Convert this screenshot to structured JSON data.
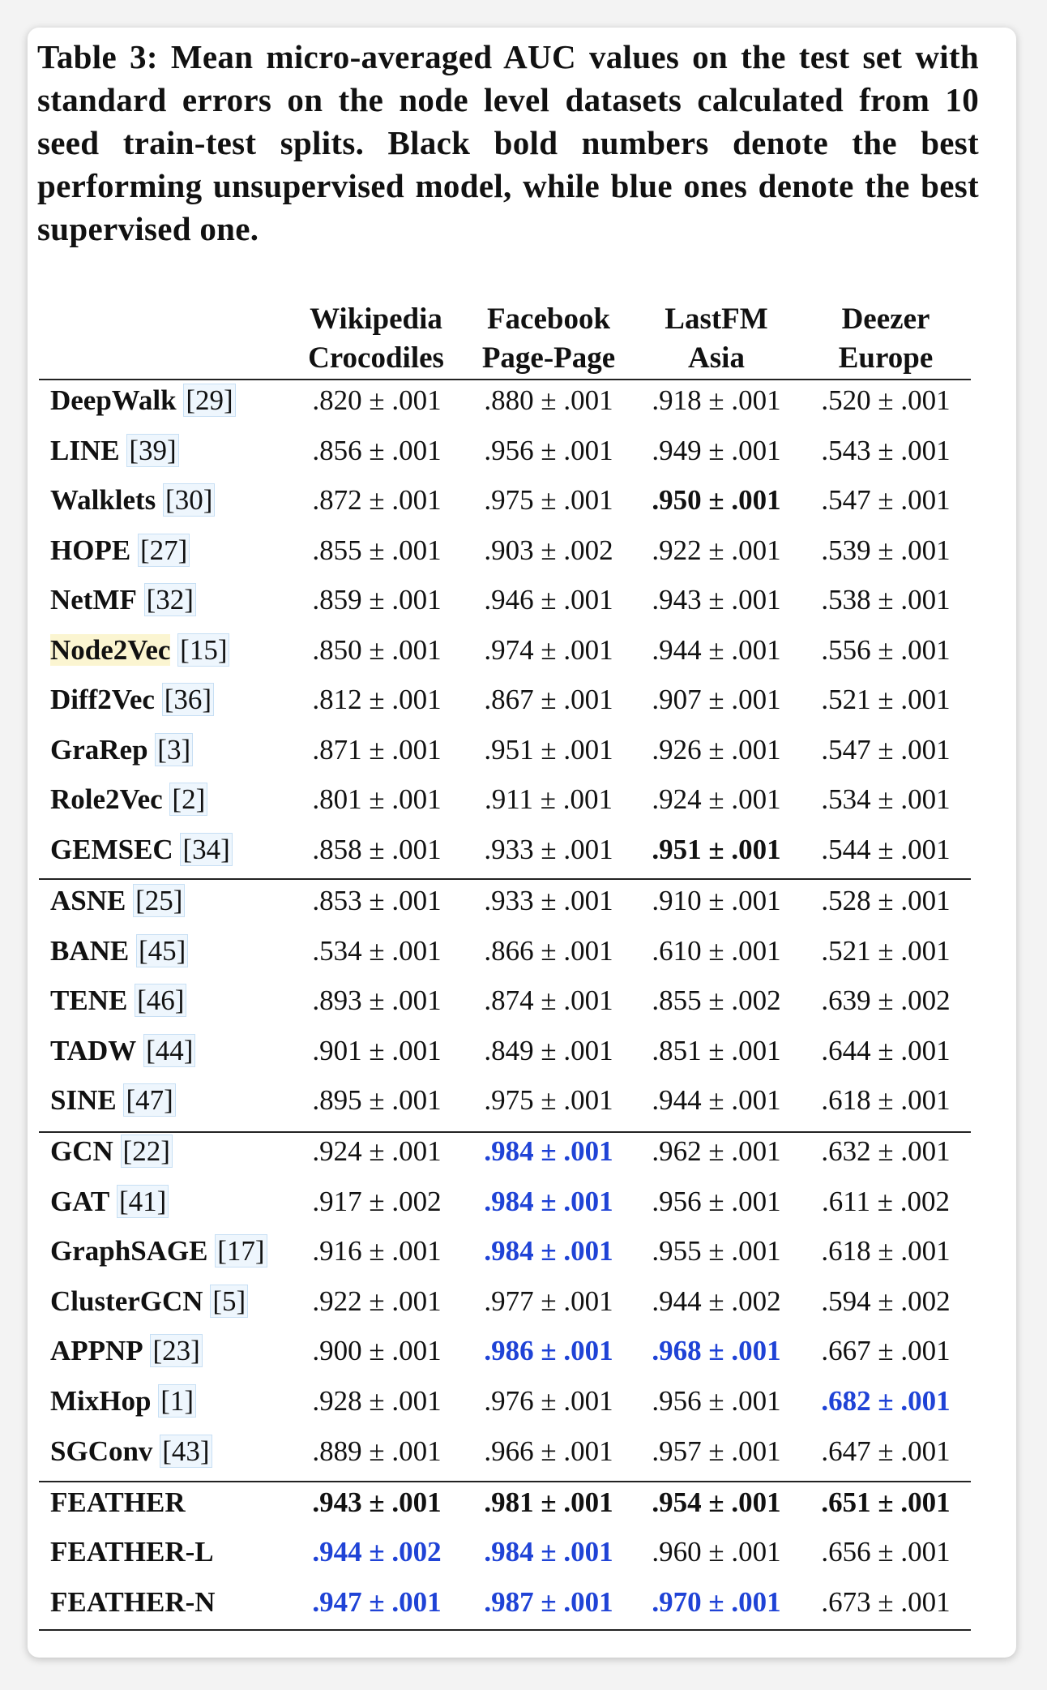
{
  "caption": "Table 3: Mean micro-averaged AUC values on the test set with standard errors on the node level datasets calculated from 10 seed train-test splits. Black bold numbers denote the best performing unsupervised model, while blue ones denote the best supervised one.",
  "colors": {
    "blue_highlight": "#1f43d6",
    "citation_box": "#c7dff4",
    "name_highlight": "#fbf5d1"
  },
  "columns": [
    {
      "line1": "Wikipedia",
      "line2": "Crocodiles"
    },
    {
      "line1": "Facebook",
      "line2": "Page-Page"
    },
    {
      "line1": "LastFM",
      "line2": "Asia"
    },
    {
      "line1": "Deezer",
      "line2": "Europe"
    }
  ],
  "groups": [
    {
      "rows": [
        {
          "name": "DeepWalk",
          "cite": "29",
          "values": [
            ".820 ± .001",
            ".880 ± .001",
            ".918 ± .001",
            ".520 ± .001"
          ],
          "styles": [
            "",
            "",
            "",
            ""
          ]
        },
        {
          "name": "LINE",
          "cite": "39",
          "values": [
            ".856 ± .001",
            ".956 ± .001",
            ".949 ± .001",
            ".543 ± .001"
          ],
          "styles": [
            "",
            "",
            "",
            ""
          ]
        },
        {
          "name": "Walklets",
          "cite": "30",
          "values": [
            ".872 ± .001",
            ".975 ± .001",
            ".950 ± .001",
            ".547 ± .001"
          ],
          "styles": [
            "",
            "",
            "bold",
            ""
          ]
        },
        {
          "name": "HOPE",
          "cite": "27",
          "values": [
            ".855 ± .001",
            ".903 ± .002",
            ".922 ± .001",
            ".539 ± .001"
          ],
          "styles": [
            "",
            "",
            "",
            ""
          ]
        },
        {
          "name": "NetMF",
          "cite": "32",
          "values": [
            ".859 ± .001",
            ".946 ± .001",
            ".943 ± .001",
            ".538 ± .001"
          ],
          "styles": [
            "",
            "",
            "",
            ""
          ]
        },
        {
          "name": "Node2Vec",
          "cite": "15",
          "highlight": true,
          "values": [
            ".850 ± .001",
            ".974 ± .001",
            ".944 ± .001",
            ".556 ± .001"
          ],
          "styles": [
            "",
            "",
            "",
            ""
          ]
        },
        {
          "name": "Diff2Vec",
          "cite": "36",
          "values": [
            ".812 ± .001",
            ".867 ± .001",
            ".907 ± .001",
            ".521 ± .001"
          ],
          "styles": [
            "",
            "",
            "",
            ""
          ]
        },
        {
          "name": "GraRep",
          "cite": "3",
          "values": [
            ".871 ± .001",
            ".951 ± .001",
            ".926 ± .001",
            ".547 ± .001"
          ],
          "styles": [
            "",
            "",
            "",
            ""
          ]
        },
        {
          "name": "Role2Vec",
          "cite": "2",
          "values": [
            ".801 ± .001",
            ".911 ± .001",
            ".924 ± .001",
            ".534 ± .001"
          ],
          "styles": [
            "",
            "",
            "",
            ""
          ]
        },
        {
          "name": "GEMSEC",
          "cite": "34",
          "values": [
            ".858 ± .001",
            ".933 ± .001",
            ".951 ± .001",
            ".544 ± .001"
          ],
          "styles": [
            "",
            "",
            "bold",
            ""
          ]
        }
      ]
    },
    {
      "rows": [
        {
          "name": "ASNE",
          "cite": "25",
          "values": [
            ".853 ± .001",
            ".933 ± .001",
            ".910 ± .001",
            ".528 ± .001"
          ],
          "styles": [
            "",
            "",
            "",
            ""
          ]
        },
        {
          "name": "BANE",
          "cite": "45",
          "values": [
            ".534 ± .001",
            ".866 ± .001",
            ".610 ± .001",
            ".521 ± .001"
          ],
          "styles": [
            "",
            "",
            "",
            ""
          ]
        },
        {
          "name": "TENE",
          "cite": "46",
          "values": [
            ".893 ± .001",
            ".874 ± .001",
            ".855 ± .002",
            ".639 ± .002"
          ],
          "styles": [
            "",
            "",
            "",
            ""
          ]
        },
        {
          "name": "TADW",
          "cite": "44",
          "values": [
            ".901 ± .001",
            ".849 ± .001",
            ".851 ± .001",
            ".644 ± .001"
          ],
          "styles": [
            "",
            "",
            "",
            ""
          ]
        },
        {
          "name": "SINE",
          "cite": "47",
          "values": [
            ".895 ± .001",
            ".975 ± .001",
            ".944 ± .001",
            ".618 ± .001"
          ],
          "styles": [
            "",
            "",
            "",
            ""
          ]
        }
      ]
    },
    {
      "rows": [
        {
          "name": "GCN",
          "cite": "22",
          "values": [
            ".924 ± .001",
            ".984 ± .001",
            ".962 ± .001",
            ".632 ± .001"
          ],
          "styles": [
            "",
            "blue",
            "",
            ""
          ]
        },
        {
          "name": "GAT",
          "cite": "41",
          "values": [
            ".917 ± .002",
            ".984 ± .001",
            ".956 ± .001",
            ".611 ± .002"
          ],
          "styles": [
            "",
            "blue",
            "",
            ""
          ]
        },
        {
          "name": "GraphSAGE",
          "cite": "17",
          "values": [
            ".916 ± .001",
            ".984 ± .001",
            ".955 ± .001",
            ".618 ± .001"
          ],
          "styles": [
            "",
            "blue",
            "",
            ""
          ]
        },
        {
          "name": "ClusterGCN",
          "cite": "5",
          "values": [
            ".922 ± .001",
            ".977 ± .001",
            ".944 ± .002",
            ".594 ± .002"
          ],
          "styles": [
            "",
            "",
            "",
            ""
          ]
        },
        {
          "name": "APPNP",
          "cite": "23",
          "values": [
            ".900 ± .001",
            ".986 ± .001",
            ".968 ± .001",
            ".667 ± .001"
          ],
          "styles": [
            "",
            "blue",
            "blue",
            ""
          ]
        },
        {
          "name": "MixHop",
          "cite": "1",
          "values": [
            ".928 ± .001",
            ".976 ± .001",
            ".956 ± .001",
            ".682 ± .001"
          ],
          "styles": [
            "",
            "",
            "",
            "blue"
          ]
        },
        {
          "name": "SGConv",
          "cite": "43",
          "values": [
            ".889 ± .001",
            ".966 ± .001",
            ".957 ± .001",
            ".647 ± .001"
          ],
          "styles": [
            "",
            "",
            "",
            ""
          ]
        }
      ]
    },
    {
      "rows": [
        {
          "name": "FEATHER",
          "cite": "",
          "values": [
            ".943 ± .001",
            ".981 ± .001",
            ".954 ± .001",
            ".651 ± .001"
          ],
          "styles": [
            "bold",
            "bold",
            "bold",
            "bold"
          ]
        },
        {
          "name": "FEATHER-L",
          "cite": "",
          "values": [
            ".944 ± .002",
            ".984 ± .001",
            ".960 ± .001",
            ".656 ± .001"
          ],
          "styles": [
            "blue",
            "blue",
            "",
            ""
          ]
        },
        {
          "name": "FEATHER-N",
          "cite": "",
          "values": [
            ".947 ± .001",
            ".987 ± .001",
            ".970 ± .001",
            ".673 ± .001"
          ],
          "styles": [
            "blue",
            "blue",
            "blue",
            ""
          ]
        }
      ]
    }
  ]
}
